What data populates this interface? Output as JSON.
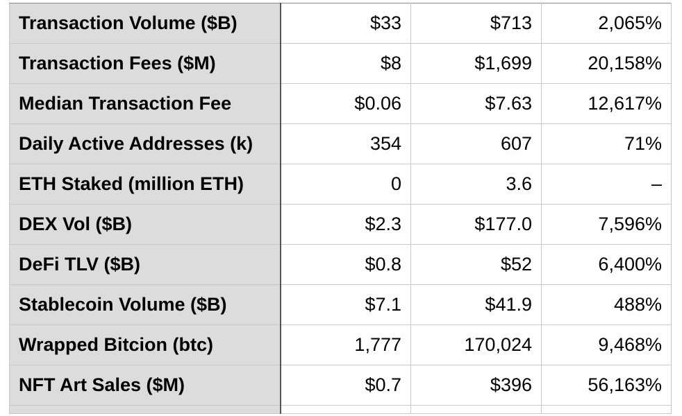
{
  "table": {
    "rows": [
      {
        "label": "Transaction Volume ($B)",
        "values": [
          "$33",
          "$713",
          "2,065%"
        ]
      },
      {
        "label": "Transaction Fees ($M)",
        "values": [
          "$8",
          "$1,699",
          "20,158%"
        ]
      },
      {
        "label": "Median Transaction Fee",
        "values": [
          "$0.06",
          "$7.63",
          "12,617%"
        ]
      },
      {
        "label": "Daily Active Addresses (k)",
        "values": [
          "354",
          "607",
          "71%"
        ]
      },
      {
        "label": "ETH Staked (million ETH)",
        "values": [
          "0",
          "3.6",
          "–"
        ]
      },
      {
        "label": "DEX Vol ($B)",
        "values": [
          "$2.3",
          "$177.0",
          "7,596%"
        ]
      },
      {
        "label": "DeFi TLV ($B)",
        "values": [
          "$0.8",
          "$52",
          "6,400%"
        ]
      },
      {
        "label": "Stablecoin Volume ($B)",
        "values": [
          "$7.1",
          "$41.9",
          "488%"
        ]
      },
      {
        "label": "Wrapped Bitcion (btc)",
        "values": [
          "1,777",
          "170,024",
          "9,468%"
        ]
      },
      {
        "label": "NFT Art Sales ($M)",
        "values": [
          "$0.7",
          "$396",
          "56,163%"
        ]
      }
    ]
  }
}
